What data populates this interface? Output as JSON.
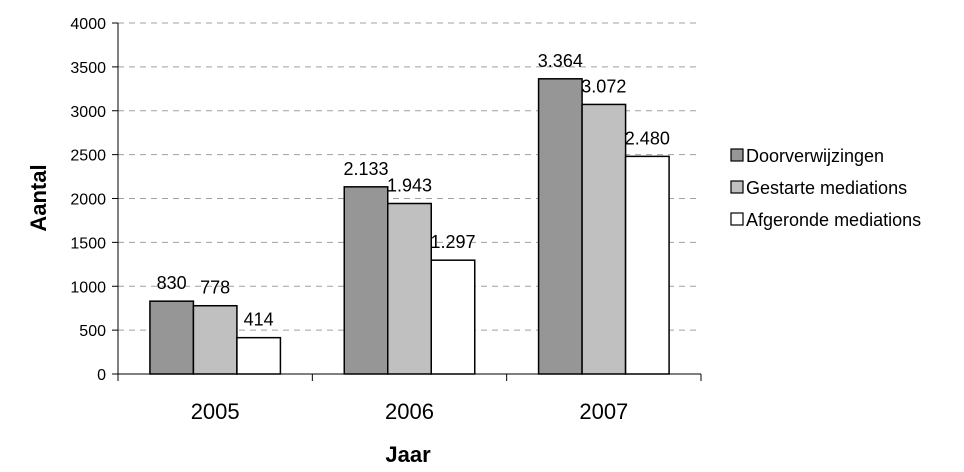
{
  "chart_data": {
    "type": "bar",
    "categories": [
      "2005",
      "2006",
      "2007"
    ],
    "series": [
      {
        "name": "Doorverwijzingen",
        "values": [
          830,
          2133,
          3364
        ],
        "labels": [
          "830",
          "2.133",
          "3.364"
        ],
        "color": "#969696"
      },
      {
        "name": "Gestarte mediations",
        "values": [
          778,
          1943,
          3072
        ],
        "labels": [
          "778",
          "1.943",
          "3.072"
        ],
        "color": "#c0c0c0"
      },
      {
        "name": "Afgeronde mediations",
        "values": [
          414,
          1297,
          2480
        ],
        "labels": [
          "414",
          "1.297",
          "2.480"
        ],
        "color": "#ffffff"
      }
    ],
    "xlabel": "Jaar",
    "ylabel": "Aantal",
    "ylim": [
      0,
      4000
    ],
    "yticks": [
      0,
      500,
      1000,
      1500,
      2000,
      2500,
      3000,
      3500,
      4000
    ],
    "grid": true,
    "legend": "right"
  }
}
